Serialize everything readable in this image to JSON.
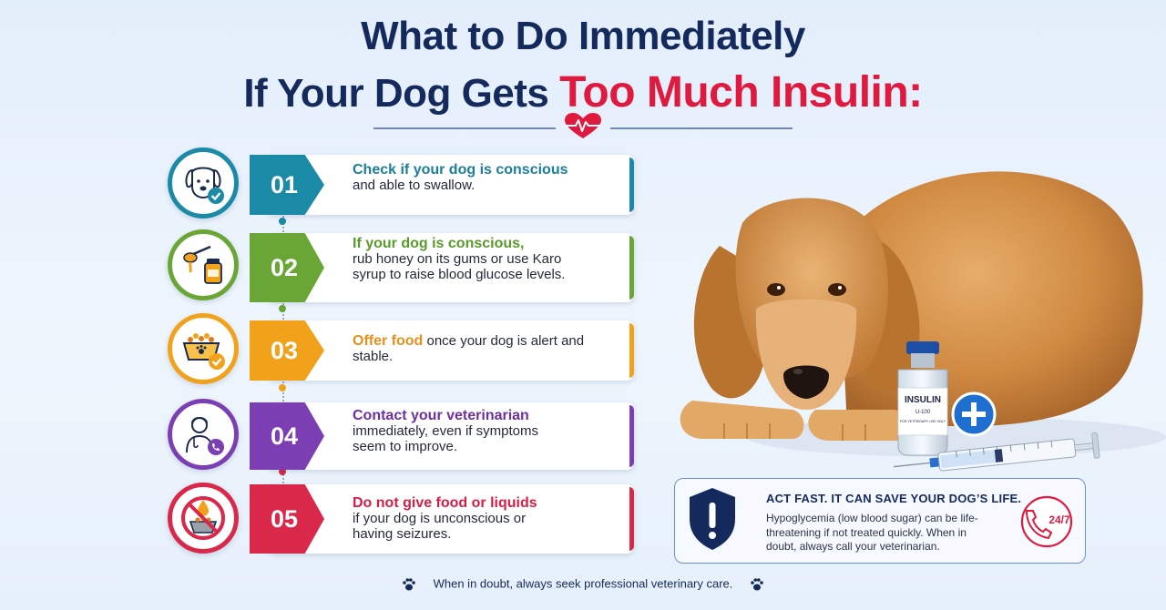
{
  "title": {
    "line1": "What to Do Immediately",
    "line2_prefix": "If Your Dog Gets ",
    "line2_highlight": "Too Much Insulin:"
  },
  "icons": {
    "divider": "heart-pulse-icon",
    "step1": "dog-check-icon",
    "step2": "honey-jar-icon",
    "step3": "food-bowl-check-icon",
    "step4": "veterinarian-phone-icon",
    "step5": "no-food-icon",
    "alert": "shield-exclamation-icon",
    "phone": "phone-24-7-icon",
    "paw": "paw-icon"
  },
  "colors": {
    "title": "#152a5c",
    "highlight": "#e0193f",
    "step1": "#1a8aa6",
    "step2": "#6aa636",
    "step3": "#f2a21a",
    "step4": "#7b3fb3",
    "step5": "#d9284a"
  },
  "steps": [
    {
      "num": "01",
      "lead": "Check if your dog is conscious",
      "rest": "and able to swallow."
    },
    {
      "num": "02",
      "lead": "If your dog is conscious,",
      "rest": "rub honey on its gums or use Karo syrup to raise blood glucose levels."
    },
    {
      "num": "03",
      "lead": "Offer food",
      "rest": " once your dog is alert and stable."
    },
    {
      "num": "04",
      "lead": "Contact your veterinarian",
      "rest": "immediately, even if symptoms seem to improve."
    },
    {
      "num": "05",
      "lead": "Do not give food or liquids",
      "rest": "if your dog is unconscious or having seizures."
    }
  ],
  "vial": {
    "label": "INSULIN",
    "strength": "U-100",
    "note": "FOR VETERINARY USE ONLY"
  },
  "alert": {
    "heading": "ACT FAST. IT CAN SAVE YOUR DOG’S LIFE.",
    "body": "Hypoglycemia (low blood sugar) can be life-threatening if not treated quickly. When in doubt, always call your veterinarian.",
    "badge": "24/7"
  },
  "footer": {
    "text": "When in doubt, always seek professional veterinary care."
  }
}
